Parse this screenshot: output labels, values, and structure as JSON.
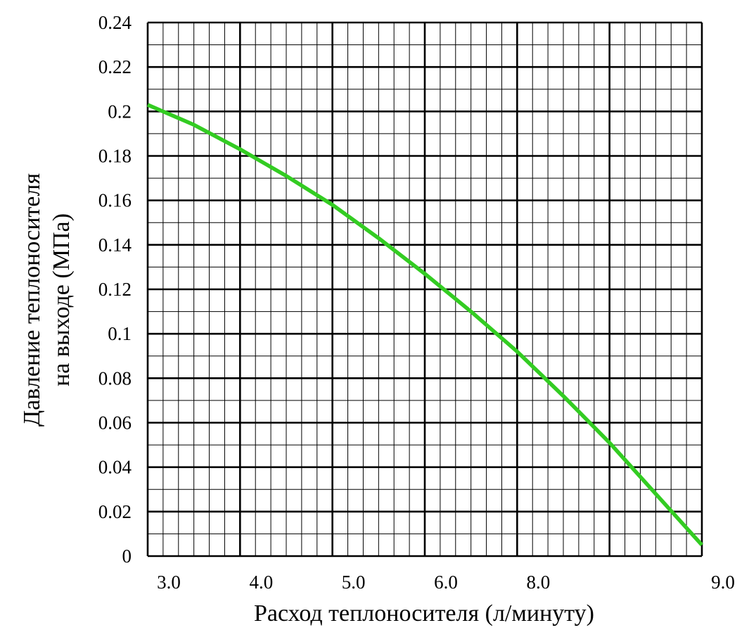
{
  "chart_data": {
    "type": "line",
    "title": "",
    "xlabel": "Расход теплоносителя (л/минуту)",
    "ylabel_line1": "Давление теплоносителя",
    "ylabel_line2": "на выходе (МПа)",
    "x_tick_labels": [
      "3.0",
      "4.0",
      "5.0",
      "6.0",
      "8.0",
      "9.0"
    ],
    "y_ticks": [
      0,
      0.02,
      0.04,
      0.06,
      0.08,
      0.1,
      0.12,
      0.14,
      0.16,
      0.18,
      0.2,
      0.22,
      0.24
    ],
    "y_tick_labels": [
      "0",
      "0.02",
      "0.04",
      "0.06",
      "0.08",
      "0.1",
      "0.12",
      "0.14",
      "0.16",
      "0.18",
      "0.2",
      "0.22",
      "0.24"
    ],
    "ylim": [
      0,
      0.24
    ],
    "grid": true,
    "series": [
      {
        "color": "#33cc22",
        "x": [
          3.0,
          3.5,
          4.0,
          4.5,
          5.0,
          5.5,
          6.0,
          6.5,
          7.0,
          7.5,
          8.0,
          8.5,
          9.0
        ],
        "y": [
          0.203,
          0.194,
          0.183,
          0.171,
          0.158,
          0.143,
          0.127,
          0.11,
          0.092,
          0.072,
          0.051,
          0.028,
          0.005
        ]
      }
    ]
  }
}
